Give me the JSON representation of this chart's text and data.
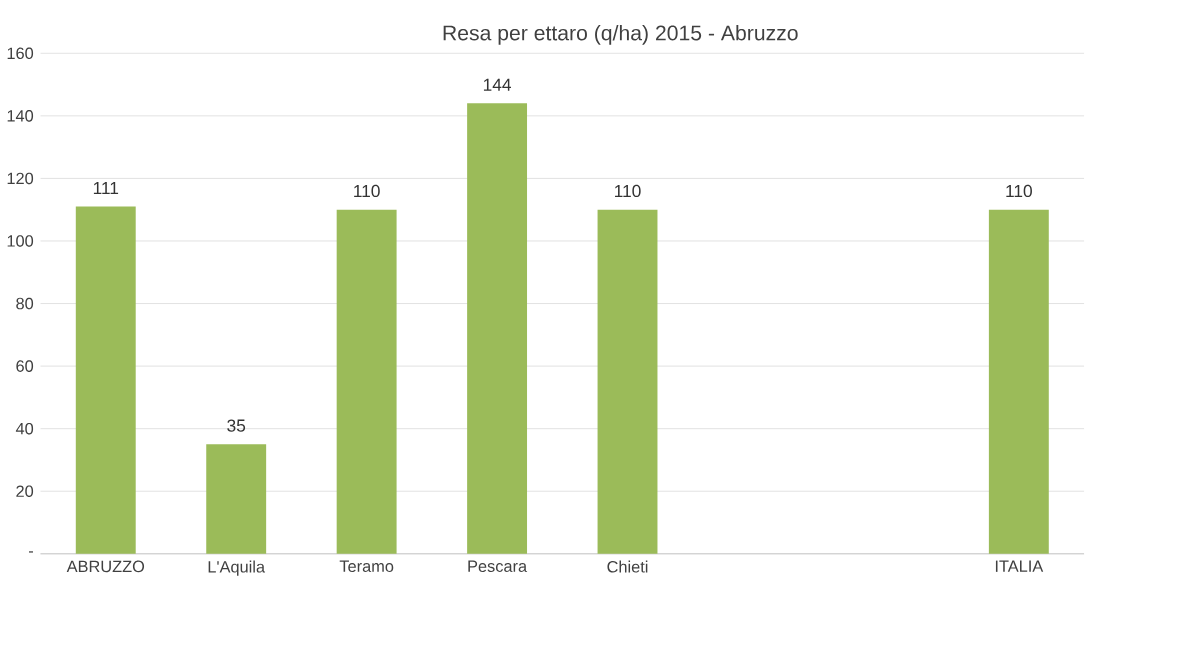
{
  "chart_data": {
    "type": "bar",
    "title": "Resa per ettaro (q/ha) 2015 - Abruzzo",
    "categories": [
      "ABRUZZO",
      "L'Aquila",
      "Teramo",
      "Pescara",
      "Chieti",
      null,
      null,
      "ITALIA"
    ],
    "values": [
      111,
      35,
      110,
      144,
      110,
      null,
      null,
      110
    ],
    "color": "#9bbb59",
    "ylim": [
      0,
      160
    ],
    "yticks": [
      {
        "value": 0,
        "label": "-"
      },
      20,
      40,
      60,
      80,
      100,
      120,
      140,
      160
    ],
    "grid": "y",
    "data_labels": true
  }
}
